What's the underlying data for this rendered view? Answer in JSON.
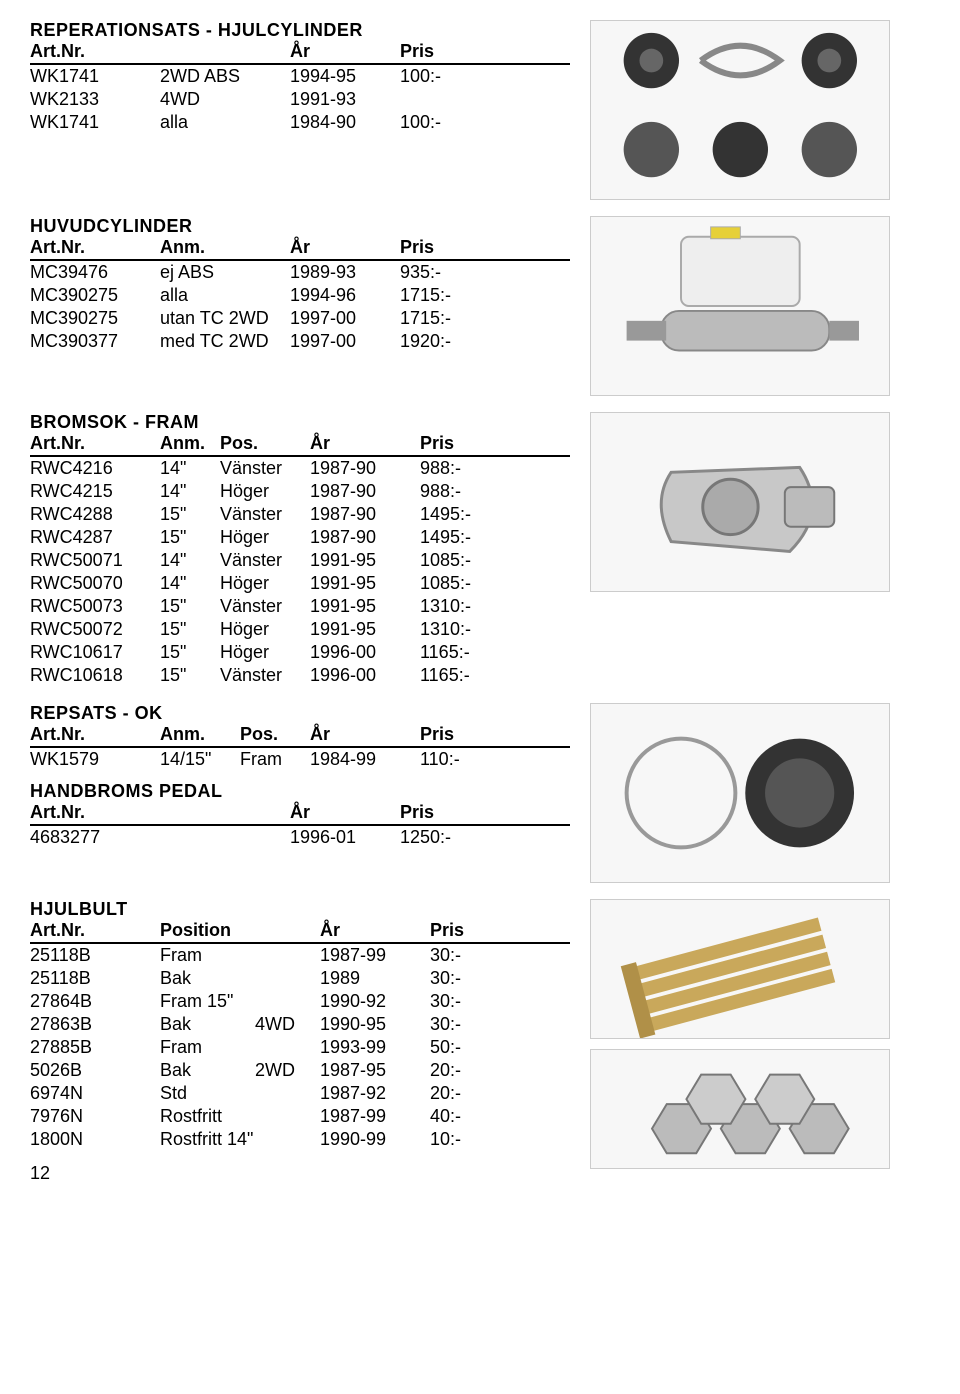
{
  "sections": {
    "reperationsats": {
      "title": "REPERATIONSATS - HJULCYLINDER",
      "header": {
        "art": "Art.Nr.",
        "ar": "År",
        "pris": "Pris"
      },
      "rows": [
        {
          "art": "WK1741",
          "anm": "2WD ABS",
          "ar": "1994-95",
          "pris": "100:-"
        },
        {
          "art": "WK2133",
          "anm": "4WD",
          "ar": "1991-93",
          "pris": ""
        },
        {
          "art": "WK1741",
          "anm": "alla",
          "ar": "1984-90",
          "pris": "100:-"
        }
      ]
    },
    "huvudcylinder": {
      "title": "HUVUDCYLINDER",
      "header": {
        "art": "Art.Nr.",
        "anm": "Anm.",
        "ar": "År",
        "pris": "Pris"
      },
      "rows": [
        {
          "art": "MC39476",
          "anm": "ej ABS",
          "ar": "1989-93",
          "pris": "935:-"
        },
        {
          "art": "MC390275",
          "anm": "alla",
          "ar": "1994-96",
          "pris": "1715:-"
        },
        {
          "art": "MC390275",
          "anm": "utan TC 2WD",
          "ar": "1997-00",
          "pris": "1715:-"
        },
        {
          "art": "MC390377",
          "anm": "med TC 2WD",
          "ar": "1997-00",
          "pris": "1920:-"
        }
      ]
    },
    "bromsok": {
      "title": "BROMSOK - FRAM",
      "header": {
        "art": "Art.Nr.",
        "anm": "Anm.",
        "pos": "Pos.",
        "ar": "År",
        "pris": "Pris"
      },
      "rows": [
        {
          "art": "RWC4216",
          "anm": "14\"",
          "pos": "Vänster",
          "ar": "1987-90",
          "pris": "988:-"
        },
        {
          "art": "RWC4215",
          "anm": "14\"",
          "pos": "Höger",
          "ar": "1987-90",
          "pris": "988:-"
        },
        {
          "art": "RWC4288",
          "anm": "15\"",
          "pos": "Vänster",
          "ar": "1987-90",
          "pris": "1495:-"
        },
        {
          "art": "RWC4287",
          "anm": "15\"",
          "pos": "Höger",
          "ar": "1987-90",
          "pris": "1495:-"
        },
        {
          "art": "RWC50071",
          "anm": "14\"",
          "pos": "Vänster",
          "ar": "1991-95",
          "pris": "1085:-"
        },
        {
          "art": "RWC50070",
          "anm": "14\"",
          "pos": "Höger",
          "ar": "1991-95",
          "pris": "1085:-"
        },
        {
          "art": "RWC50073",
          "anm": "15\"",
          "pos": "Vänster",
          "ar": "1991-95",
          "pris": "1310:-"
        },
        {
          "art": "RWC50072",
          "anm": "15\"",
          "pos": "Höger",
          "ar": "1991-95",
          "pris": "1310:-"
        },
        {
          "art": "RWC10617",
          "anm": "15\"",
          "pos": "Höger",
          "ar": "1996-00",
          "pris": "1165:-"
        },
        {
          "art": "RWC10618",
          "anm": "15\"",
          "pos": "Vänster",
          "ar": "1996-00",
          "pris": "1165:-"
        }
      ]
    },
    "repsats": {
      "title": "REPSATS - OK",
      "header": {
        "art": "Art.Nr.",
        "anm": "Anm.",
        "pos": "Pos.",
        "ar": "År",
        "pris": "Pris"
      },
      "rows": [
        {
          "art": "WK1579",
          "anm": "14/15\"",
          "pos": "Fram",
          "ar": "1984-99",
          "pris": "110:-"
        }
      ]
    },
    "handbroms": {
      "title": "HANDBROMS PEDAL",
      "header": {
        "art": "Art.Nr.",
        "ar": "År",
        "pris": "Pris"
      },
      "rows": [
        {
          "art": "4683277",
          "ar": "1996-01",
          "pris": "1250:-"
        }
      ]
    },
    "hjulbult": {
      "title": "HJULBULT",
      "header": {
        "art": "Art.Nr.",
        "pos": "Position",
        "ar": "År",
        "pris": "Pris"
      },
      "rows": [
        {
          "art": "25118B",
          "pos": "Fram",
          "anm": "",
          "ar": "1987-99",
          "pris": "30:-"
        },
        {
          "art": "25118B",
          "pos": "Bak",
          "anm": "",
          "ar": "1989",
          "pris": "30:-"
        },
        {
          "art": "27864B",
          "pos": "Fram 15\"",
          "anm": "",
          "ar": "1990-92",
          "pris": "30:-"
        },
        {
          "art": "27863B",
          "pos": "Bak",
          "anm": "4WD",
          "ar": "1990-95",
          "pris": "30:-"
        },
        {
          "art": "27885B",
          "pos": "Fram",
          "anm": "",
          "ar": "1993-99",
          "pris": "50:-"
        },
        {
          "art": "5026B",
          "pos": "Bak",
          "anm": "2WD",
          "ar": "1987-95",
          "pris": "20:-"
        },
        {
          "art": "6974N",
          "pos": "Std",
          "anm": "",
          "ar": "1987-92",
          "pris": "20:-"
        },
        {
          "art": "7976N",
          "pos": "Rostfritt",
          "anm": "",
          "ar": "1987-99",
          "pris": "40:-"
        },
        {
          "art": "1800N",
          "pos": "Rostfritt 14\"",
          "anm": "",
          "ar": "1990-99",
          "pris": "10:-"
        }
      ]
    }
  },
  "page_number": "12"
}
